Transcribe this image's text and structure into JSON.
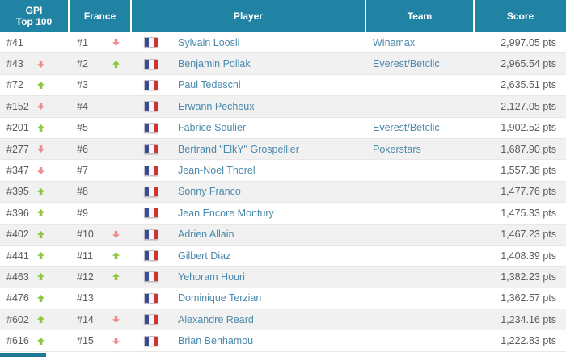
{
  "header": {
    "col_gpi_line1": "GPI",
    "col_gpi_line2": "Top 100",
    "col_france": "France",
    "col_player": "Player",
    "col_team": "Team",
    "col_score": "Score"
  },
  "rows": [
    {
      "gpi_rank": "#41",
      "gpi_trend": "none",
      "fr_rank": "#1",
      "fr_trend": "down",
      "flag": "france",
      "player": "Sylvain Loosli",
      "team": "Winamax",
      "score": "2,997.05 pts"
    },
    {
      "gpi_rank": "#43",
      "gpi_trend": "down",
      "fr_rank": "#2",
      "fr_trend": "up",
      "flag": "france",
      "player": "Benjamin Pollak",
      "team": "Everest/Betclic",
      "score": "2,965.54 pts"
    },
    {
      "gpi_rank": "#72",
      "gpi_trend": "up",
      "fr_rank": "#3",
      "fr_trend": "none",
      "flag": "france",
      "player": "Paul Tedeschi",
      "team": "",
      "score": "2,635.51 pts"
    },
    {
      "gpi_rank": "#152",
      "gpi_trend": "down",
      "fr_rank": "#4",
      "fr_trend": "none",
      "flag": "france",
      "player": "Erwann Pecheux",
      "team": "",
      "score": "2,127.05 pts"
    },
    {
      "gpi_rank": "#201",
      "gpi_trend": "up",
      "fr_rank": "#5",
      "fr_trend": "none",
      "flag": "france",
      "player": "Fabrice Soulier",
      "team": "Everest/Betclic",
      "score": "1,902.52 pts"
    },
    {
      "gpi_rank": "#277",
      "gpi_trend": "down",
      "fr_rank": "#6",
      "fr_trend": "none",
      "flag": "france",
      "player": "Bertrand \"ElkY\" Grospellier",
      "team": "Pokerstars",
      "score": "1,687.90 pts"
    },
    {
      "gpi_rank": "#347",
      "gpi_trend": "down",
      "fr_rank": "#7",
      "fr_trend": "none",
      "flag": "france",
      "player": "Jean-Noel Thorel",
      "team": "",
      "score": "1,557.38 pts"
    },
    {
      "gpi_rank": "#395",
      "gpi_trend": "up",
      "fr_rank": "#8",
      "fr_trend": "none",
      "flag": "france",
      "player": "Sonny Franco",
      "team": "",
      "score": "1,477.76 pts"
    },
    {
      "gpi_rank": "#396",
      "gpi_trend": "up",
      "fr_rank": "#9",
      "fr_trend": "none",
      "flag": "france",
      "player": "Jean Encore Montury",
      "team": "",
      "score": "1,475.33 pts"
    },
    {
      "gpi_rank": "#402",
      "gpi_trend": "up",
      "fr_rank": "#10",
      "fr_trend": "down",
      "flag": "france",
      "player": "Adrien Allain",
      "team": "",
      "score": "1,467.23 pts"
    },
    {
      "gpi_rank": "#441",
      "gpi_trend": "up",
      "fr_rank": "#11",
      "fr_trend": "up",
      "flag": "france",
      "player": "Gilbert Diaz",
      "team": "",
      "score": "1,408.39 pts"
    },
    {
      "gpi_rank": "#463",
      "gpi_trend": "up",
      "fr_rank": "#12",
      "fr_trend": "up",
      "flag": "france",
      "player": "Yehoram Houri",
      "team": "",
      "score": "1,382.23 pts"
    },
    {
      "gpi_rank": "#476",
      "gpi_trend": "up",
      "fr_rank": "#13",
      "fr_trend": "none",
      "flag": "france",
      "player": "Dominique Terzian",
      "team": "",
      "score": "1,362.57 pts"
    },
    {
      "gpi_rank": "#602",
      "gpi_trend": "up",
      "fr_rank": "#14",
      "fr_trend": "down",
      "flag": "france",
      "player": "Alexandre Reard",
      "team": "",
      "score": "1,234.16 pts"
    },
    {
      "gpi_rank": "#616",
      "gpi_trend": "up",
      "fr_rank": "#15",
      "fr_trend": "down",
      "flag": "france",
      "player": "Brian Benhamou",
      "team": "",
      "score": "1,222.83 pts"
    }
  ],
  "colors": {
    "header_bg": "#2183a3",
    "header_text": "#ffffff",
    "row_alt_bg": "#f1f1f1",
    "row_border": "#e7e7e7",
    "link_blue": "#4b89ac",
    "rank_text": "#5a5a5a",
    "trend_up": "#8dc63f",
    "trend_down": "#f08c8c",
    "flag_blue": "#3c4a9e",
    "flag_red": "#d0342c"
  }
}
